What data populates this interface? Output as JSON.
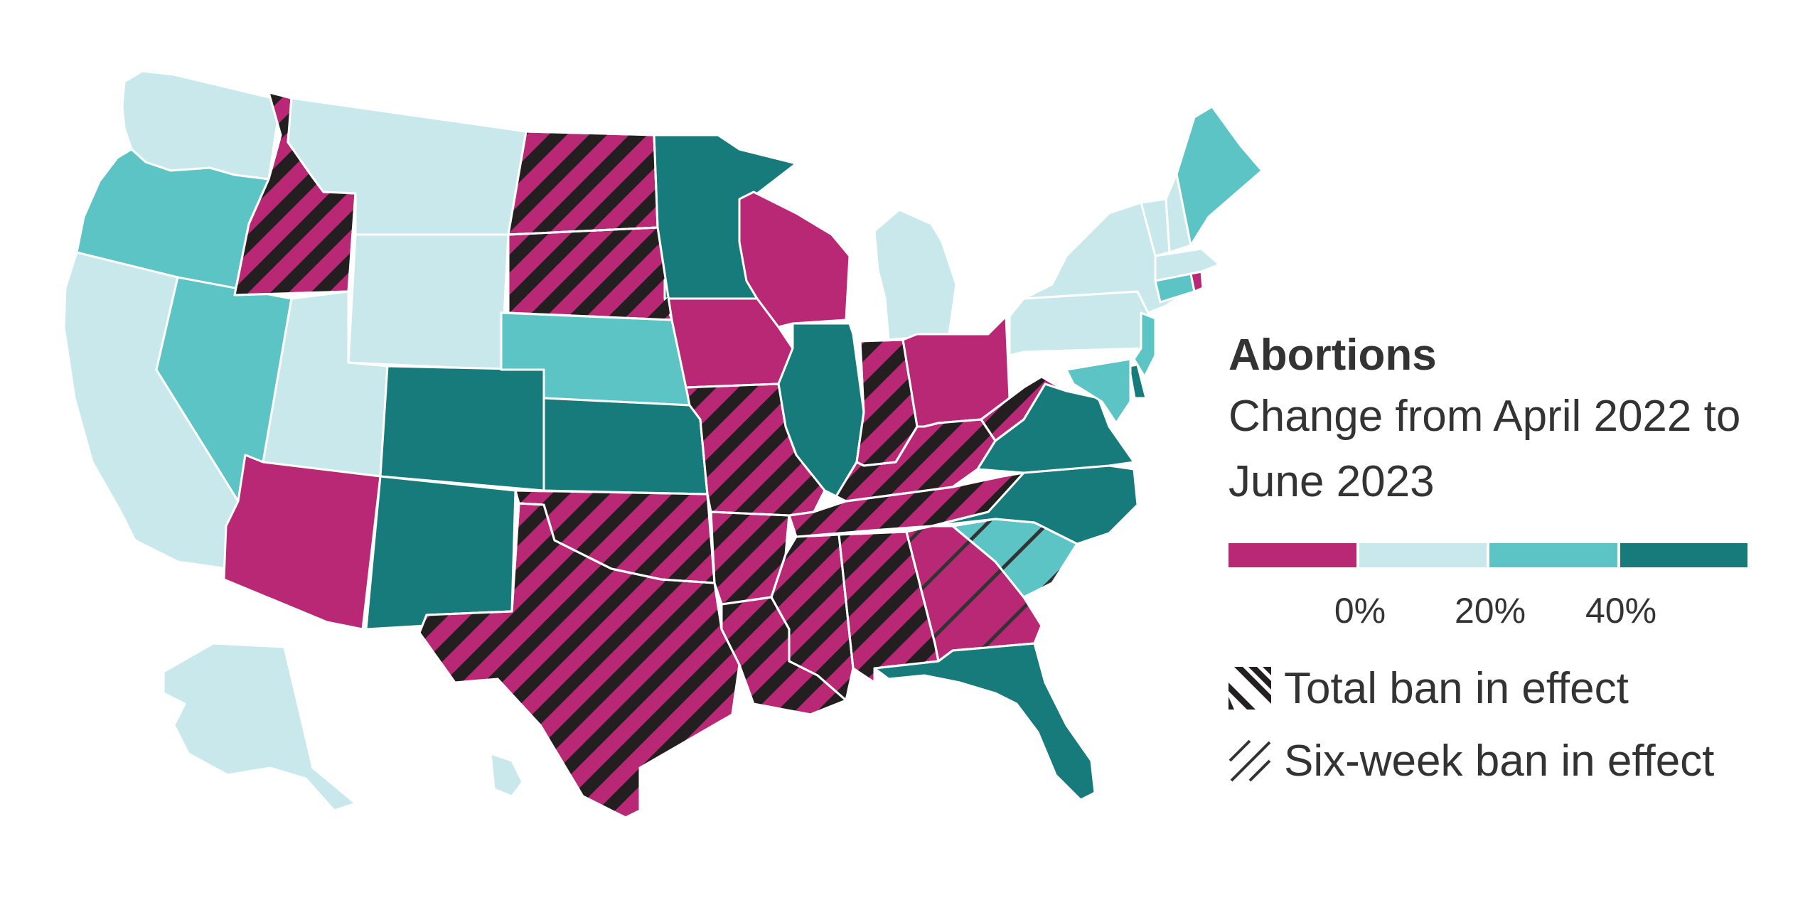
{
  "legend": {
    "title": "Abortions",
    "subtitle": "Change from April 2022 to June 2023",
    "scale_colors": [
      "#b92874",
      "#c8e8eb",
      "#5cc4c4",
      "#187b7b"
    ],
    "scale_ticks": [
      "0%",
      "20%",
      "40%"
    ],
    "total_ban_label": "Total ban in effect",
    "six_week_ban_label": "Six-week ban in effect"
  },
  "colors": {
    "decrease": "#b92874",
    "low_increase": "#c8e8eb",
    "mid_increase": "#5cc4c4",
    "high_increase": "#187b7b",
    "total_ban_hatch": "#231f20",
    "six_week_hatch": "#333333",
    "border": "#ffffff"
  },
  "states": [
    {
      "id": "WA",
      "band": "low_increase",
      "ban": "none"
    },
    {
      "id": "OR",
      "band": "mid_increase",
      "ban": "none"
    },
    {
      "id": "CA",
      "band": "low_increase",
      "ban": "none"
    },
    {
      "id": "NV",
      "band": "mid_increase",
      "ban": "none"
    },
    {
      "id": "ID",
      "band": "decrease",
      "ban": "total"
    },
    {
      "id": "MT",
      "band": "low_increase",
      "ban": "none"
    },
    {
      "id": "WY",
      "band": "low_increase",
      "ban": "none"
    },
    {
      "id": "UT",
      "band": "low_increase",
      "ban": "none"
    },
    {
      "id": "AZ",
      "band": "decrease",
      "ban": "none"
    },
    {
      "id": "CO",
      "band": "high_increase",
      "ban": "none"
    },
    {
      "id": "NM",
      "band": "high_increase",
      "ban": "none"
    },
    {
      "id": "ND",
      "band": "decrease",
      "ban": "total"
    },
    {
      "id": "SD",
      "band": "decrease",
      "ban": "total"
    },
    {
      "id": "NE",
      "band": "mid_increase",
      "ban": "none"
    },
    {
      "id": "KS",
      "band": "high_increase",
      "ban": "none"
    },
    {
      "id": "OK",
      "band": "decrease",
      "ban": "total"
    },
    {
      "id": "TX",
      "band": "decrease",
      "ban": "total"
    },
    {
      "id": "MN",
      "band": "high_increase",
      "ban": "none"
    },
    {
      "id": "IA",
      "band": "decrease",
      "ban": "none"
    },
    {
      "id": "MO",
      "band": "decrease",
      "ban": "total"
    },
    {
      "id": "AR",
      "band": "decrease",
      "ban": "total"
    },
    {
      "id": "LA",
      "band": "decrease",
      "ban": "total"
    },
    {
      "id": "WI",
      "band": "decrease",
      "ban": "none"
    },
    {
      "id": "IL",
      "band": "high_increase",
      "ban": "none"
    },
    {
      "id": "MI",
      "band": "low_increase",
      "ban": "none"
    },
    {
      "id": "IN",
      "band": "decrease",
      "ban": "total"
    },
    {
      "id": "OH",
      "band": "decrease",
      "ban": "none"
    },
    {
      "id": "KY",
      "band": "decrease",
      "ban": "total"
    },
    {
      "id": "TN",
      "band": "decrease",
      "ban": "total"
    },
    {
      "id": "MS",
      "band": "decrease",
      "ban": "total"
    },
    {
      "id": "AL",
      "band": "decrease",
      "ban": "total"
    },
    {
      "id": "GA",
      "band": "decrease",
      "ban": "six_week"
    },
    {
      "id": "FL",
      "band": "high_increase",
      "ban": "none"
    },
    {
      "id": "SC",
      "band": "mid_increase",
      "ban": "six_week"
    },
    {
      "id": "NC",
      "band": "high_increase",
      "ban": "none"
    },
    {
      "id": "VA",
      "band": "high_increase",
      "ban": "none"
    },
    {
      "id": "WV",
      "band": "decrease",
      "ban": "total"
    },
    {
      "id": "PA",
      "band": "low_increase",
      "ban": "none"
    },
    {
      "id": "NY",
      "band": "low_increase",
      "ban": "none"
    },
    {
      "id": "NJ",
      "band": "mid_increase",
      "ban": "none"
    },
    {
      "id": "DE",
      "band": "high_increase",
      "ban": "none"
    },
    {
      "id": "MD",
      "band": "mid_increase",
      "ban": "none"
    },
    {
      "id": "CT",
      "band": "mid_increase",
      "ban": "none"
    },
    {
      "id": "RI",
      "band": "decrease",
      "ban": "none"
    },
    {
      "id": "MA",
      "band": "low_increase",
      "ban": "none"
    },
    {
      "id": "VT",
      "band": "low_increase",
      "ban": "none"
    },
    {
      "id": "NH",
      "band": "low_increase",
      "ban": "none"
    },
    {
      "id": "ME",
      "band": "mid_increase",
      "ban": "none"
    },
    {
      "id": "AK",
      "band": "low_increase",
      "ban": "none"
    },
    {
      "id": "HI",
      "band": "low_increase",
      "ban": "none"
    }
  ]
}
